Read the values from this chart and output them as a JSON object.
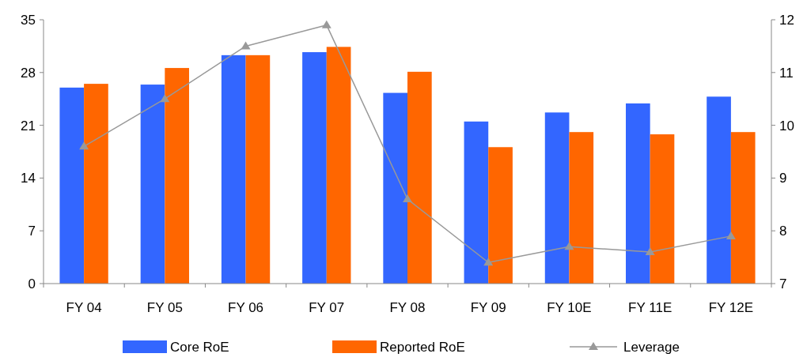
{
  "chart_data": {
    "type": "bar",
    "categories": [
      "FY 04",
      "FY 05",
      "FY 06",
      "FY 07",
      "FY 08",
      "FY 09",
      "FY 10E",
      "FY 11E",
      "FY 12E"
    ],
    "series": [
      {
        "name": "Core RoE",
        "color": "#3366ff",
        "values": [
          26.0,
          26.4,
          30.3,
          30.7,
          25.3,
          21.5,
          22.7,
          23.9,
          24.8
        ]
      },
      {
        "name": "Reported RoE",
        "color": "#ff6600",
        "values": [
          26.5,
          28.6,
          30.3,
          31.4,
          28.1,
          18.1,
          20.1,
          19.8,
          20.1
        ]
      },
      {
        "name": "Leverage",
        "type": "line",
        "axis": "y2",
        "color": "#999999",
        "marker": "triangle",
        "values": [
          9.6,
          10.5,
          11.5,
          11.9,
          8.6,
          7.4,
          7.7,
          7.6,
          7.9
        ]
      }
    ],
    "ylim": [
      0,
      35
    ],
    "yticks": [
      0,
      7,
      14,
      21,
      28,
      35
    ],
    "y2lim": [
      7,
      12
    ],
    "y2ticks": [
      7,
      8,
      9,
      10,
      11,
      12
    ],
    "legend": "bottom",
    "grid": false
  }
}
